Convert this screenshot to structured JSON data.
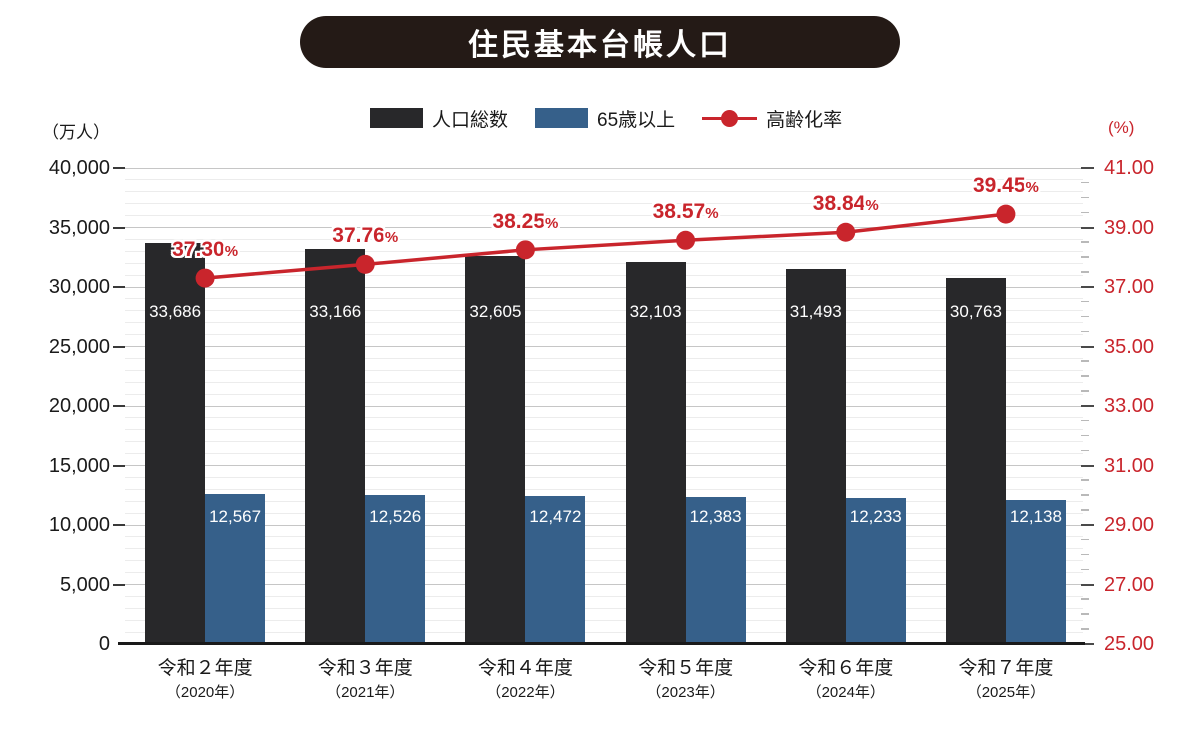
{
  "title": {
    "text": "住民基本台帳人口",
    "bg_color": "#241a16",
    "text_color": "#ffffff"
  },
  "legend": {
    "items": [
      {
        "label": "人口総数",
        "marker": "swatch",
        "color": "#28282a"
      },
      {
        "label": "65歳以上",
        "marker": "swatch",
        "color": "#36608a"
      },
      {
        "label": "高齢化率",
        "marker": "line-dot",
        "color": "#c9252c"
      }
    ]
  },
  "axes": {
    "left_unit": "（万人）",
    "right_unit": "(%)"
  },
  "chart_data": {
    "type": "bar+line",
    "title": "住民基本台帳人口",
    "grid": true,
    "legend_position": "top",
    "categories": [
      {
        "label": "令和２年度",
        "sub": "（2020年）"
      },
      {
        "label": "令和３年度",
        "sub": "（2021年）"
      },
      {
        "label": "令和４年度",
        "sub": "（2022年）"
      },
      {
        "label": "令和５年度",
        "sub": "（2023年）"
      },
      {
        "label": "令和６年度",
        "sub": "（2024年）"
      },
      {
        "label": "令和７年度",
        "sub": "（2025年）"
      }
    ],
    "series": [
      {
        "name": "人口総数",
        "type": "bar",
        "axis": "left",
        "color": "#28282a",
        "values": [
          33686,
          33166,
          32605,
          32103,
          31493,
          30763
        ],
        "value_labels": [
          "33,686",
          "33,166",
          "32,605",
          "32,103",
          "31,493",
          "30,763"
        ]
      },
      {
        "name": "65歳以上",
        "type": "bar",
        "axis": "left",
        "color": "#36608a",
        "values": [
          12567,
          12526,
          12472,
          12383,
          12233,
          12138
        ],
        "value_labels": [
          "12,567",
          "12,526",
          "12,472",
          "12,383",
          "12,233",
          "12,138"
        ]
      },
      {
        "name": "高齢化率",
        "type": "line",
        "axis": "right",
        "color": "#c9252c",
        "values": [
          37.3,
          37.76,
          38.25,
          38.57,
          38.84,
          39.45
        ],
        "value_labels": [
          "37.30",
          "37.76",
          "38.25",
          "38.57",
          "38.84",
          "39.45"
        ],
        "value_suffix": "%"
      }
    ],
    "left_axis": {
      "min": 0,
      "max": 40000,
      "major_step": 5000,
      "minor_step": 1000,
      "tick_labels": [
        "0",
        "5,000",
        "10,000",
        "15,000",
        "20,000",
        "25,000",
        "30,000",
        "35,000",
        "40,000"
      ],
      "unit": "（万人）"
    },
    "right_axis": {
      "min": 25,
      "max": 41,
      "major_step": 2,
      "minor_step": 0.5,
      "tick_labels": [
        "25.00",
        "27.00",
        "29.00",
        "31.00",
        "33.00",
        "35.00",
        "37.00",
        "39.00",
        "41.00"
      ],
      "unit": "(%)",
      "color": "#c9252c"
    }
  }
}
